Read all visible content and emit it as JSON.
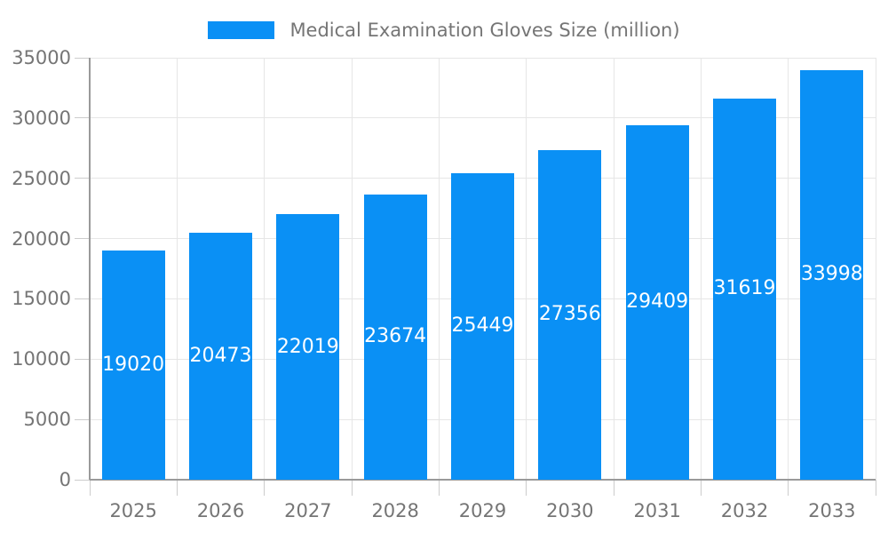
{
  "legend": {
    "label": "Medical Examination Gloves Size (million)"
  },
  "chart_data": {
    "type": "bar",
    "title": "Medical Examination Gloves Size (million)",
    "categories": [
      "2025",
      "2026",
      "2027",
      "2028",
      "2029",
      "2030",
      "2031",
      "2032",
      "2033"
    ],
    "series": [
      {
        "name": "Medical Examination Gloves Size (million)",
        "values": [
          19020,
          20473,
          22019,
          23674,
          25449,
          27356,
          29409,
          31619,
          33998
        ]
      }
    ],
    "xlabel": "",
    "ylabel": "",
    "ylim": [
      0,
      35000
    ],
    "ytick_step": 5000,
    "ytick_labels": [
      "0",
      "5000",
      "10000",
      "15000",
      "20000",
      "25000",
      "30000",
      "35000"
    ],
    "grid": true,
    "vertical_gridlines": true,
    "legend_position": "top-center",
    "value_label_position": "inside-center",
    "colors": {
      "bar": "#0a90f5",
      "axis": "#9a9a9a",
      "gridline": "#e6e6e6",
      "tick": "#cccccc",
      "tick_label": "#757575",
      "value_label": "#ffffff",
      "background": "#ffffff"
    }
  }
}
